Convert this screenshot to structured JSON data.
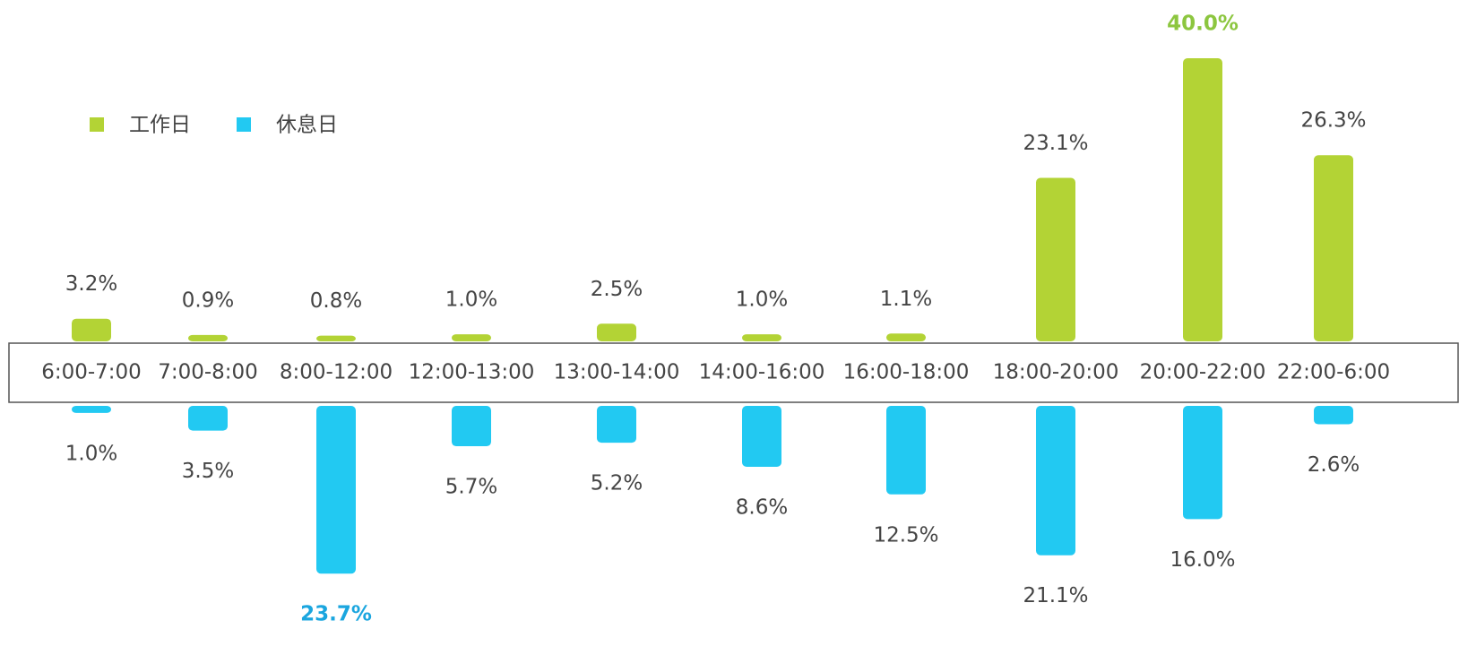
{
  "chart_data": {
    "type": "diverging-bar",
    "categories": [
      "6:00-7:00",
      "7:00-8:00",
      "8:00-12:00",
      "12:00-13:00",
      "13:00-14:00",
      "14:00-16:00",
      "16:00-18:00",
      "18:00-20:00",
      "20:00-22:00",
      "22:00-6:00"
    ],
    "series": [
      {
        "name": "工作日",
        "color": "#b3d335",
        "values": [
          3.2,
          0.9,
          0.8,
          1.0,
          2.5,
          1.0,
          1.1,
          23.1,
          40.0,
          26.3
        ],
        "value_labels": [
          "3.2%",
          "0.9%",
          "0.8%",
          "1.0%",
          "2.5%",
          "1.0%",
          "1.1%",
          "23.1%",
          "40.0%",
          "26.3%"
        ]
      },
      {
        "name": "休息日",
        "color": "#22c9f2",
        "values": [
          1.0,
          3.5,
          23.7,
          5.7,
          5.2,
          8.6,
          12.5,
          21.1,
          16.0,
          2.6
        ],
        "value_labels": [
          "1.0%",
          "3.5%",
          "23.7%",
          "5.7%",
          "5.2%",
          "8.6%",
          "12.5%",
          "21.1%",
          "16.0%",
          "2.6%"
        ]
      }
    ],
    "legend": "top-left"
  }
}
